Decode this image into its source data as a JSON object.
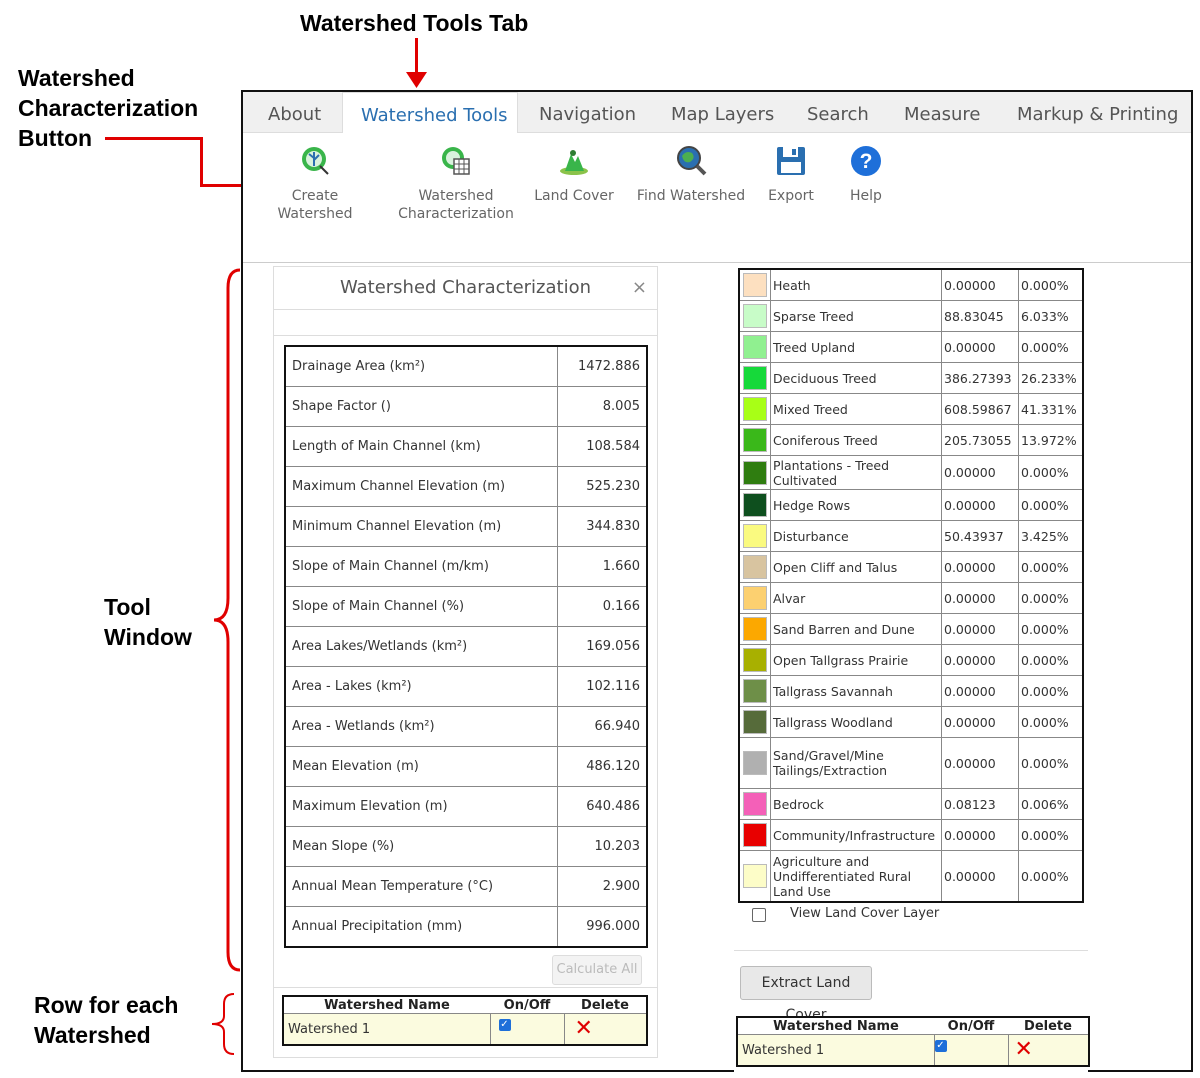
{
  "annotations": {
    "tools_tab": "Watershed Tools Tab",
    "char_button": [
      "Watershed",
      "Characterization",
      "Button"
    ],
    "tool_window": [
      "Tool",
      "Window"
    ],
    "row_each": [
      "Row for each",
      "Watershed"
    ]
  },
  "tabs": [
    "About",
    "Watershed Tools",
    "Navigation",
    "Map Layers",
    "Search",
    "Measure",
    "Markup & Printing"
  ],
  "toolbar": [
    {
      "label1": "Create",
      "label2": "Watershed",
      "icon": "create-watershed-icon"
    },
    {
      "label1": "Watershed",
      "label2": "Characterization",
      "icon": "watershed-characterization-icon"
    },
    {
      "label1": "Land Cover",
      "label2": "",
      "icon": "land-cover-icon"
    },
    {
      "label1": "Find Watershed",
      "label2": "",
      "icon": "find-watershed-icon"
    },
    {
      "label1": "Export",
      "label2": "",
      "icon": "save-icon"
    },
    {
      "label1": "Help",
      "label2": "",
      "icon": "help-icon"
    }
  ],
  "characterization": {
    "title": "Watershed Characterization",
    "close": "×",
    "rows": [
      {
        "label": "Drainage Area (km²)",
        "value": "1472.886"
      },
      {
        "label": "Shape Factor ()",
        "value": "8.005"
      },
      {
        "label": "Length of Main Channel (km)",
        "value": "108.584"
      },
      {
        "label": "Maximum Channel Elevation (m)",
        "value": "525.230"
      },
      {
        "label": "Minimum Channel Elevation (m)",
        "value": "344.830"
      },
      {
        "label": "Slope of Main Channel (m/km)",
        "value": "1.660"
      },
      {
        "label": "Slope of Main Channel (%)",
        "value": "0.166"
      },
      {
        "label": "Area Lakes/Wetlands (km²)",
        "value": "169.056"
      },
      {
        "label": "Area - Lakes (km²)",
        "value": "102.116"
      },
      {
        "label": "Area - Wetlands (km²)",
        "value": "66.940"
      },
      {
        "label": "Mean Elevation (m)",
        "value": "486.120"
      },
      {
        "label": "Maximum Elevation (m)",
        "value": "640.486"
      },
      {
        "label": "Mean Slope (%)",
        "value": "10.203"
      },
      {
        "label": "Annual Mean Temperature (°C)",
        "value": "2.900"
      },
      {
        "label": "Annual Precipitation (mm)",
        "value": "996.000"
      }
    ],
    "calc_button": "Calculate All"
  },
  "watershed_table": {
    "headers": [
      "Watershed Name",
      "On/Off",
      "Delete"
    ],
    "row": {
      "name": "Watershed 1",
      "check": "✓",
      "delete": "✕"
    }
  },
  "land_cover": {
    "rows": [
      {
        "color": "#fde0c0",
        "name": "Heath",
        "area": "0.00000",
        "pct": "0.000%"
      },
      {
        "color": "#c8fcc8",
        "name": "Sparse Treed",
        "area": "88.83045",
        "pct": "6.033%"
      },
      {
        "color": "#90f090",
        "name": "Treed Upland",
        "area": "0.00000",
        "pct": "0.000%"
      },
      {
        "color": "#16d93a",
        "name": "Deciduous Treed",
        "area": "386.27393",
        "pct": "26.233%"
      },
      {
        "color": "#a8ff16",
        "name": "Mixed Treed",
        "area": "608.59867",
        "pct": "41.331%"
      },
      {
        "color": "#3ab81a",
        "name": "Coniferous Treed",
        "area": "205.73055",
        "pct": "13.972%"
      },
      {
        "color": "#2f7d10",
        "name": "Plantations - Treed Cultivated",
        "area": "0.00000",
        "pct": "0.000%"
      },
      {
        "color": "#0e4f1e",
        "name": "Hedge Rows",
        "area": "0.00000",
        "pct": "0.000%"
      },
      {
        "color": "#fafa80",
        "name": "Disturbance",
        "area": "50.43937",
        "pct": "3.425%"
      },
      {
        "color": "#d8c4a0",
        "name": "Open Cliff and Talus",
        "area": "0.00000",
        "pct": "0.000%"
      },
      {
        "color": "#fcd070",
        "name": "Alvar",
        "area": "0.00000",
        "pct": "0.000%"
      },
      {
        "color": "#fca800",
        "name": "Sand Barren and Dune",
        "area": "0.00000",
        "pct": "0.000%"
      },
      {
        "color": "#a8b000",
        "name": "Open Tallgrass Prairie",
        "area": "0.00000",
        "pct": "0.000%"
      },
      {
        "color": "#6e8f48",
        "name": "Tallgrass Savannah",
        "area": "0.00000",
        "pct": "0.000%"
      },
      {
        "color": "#566b3a",
        "name": "Tallgrass Woodland",
        "area": "0.00000",
        "pct": "0.000%"
      },
      {
        "color": "#b0b0b0",
        "name": "Sand/Gravel/Mine Tailings/Extraction",
        "area": "0.00000",
        "pct": "0.000%"
      },
      {
        "color": "#f460b8",
        "name": "Bedrock",
        "area": "0.08123",
        "pct": "0.006%"
      },
      {
        "color": "#e80000",
        "name": "Community/Infrastructure",
        "area": "0.00000",
        "pct": "0.000%"
      },
      {
        "color": "#fdfdc8",
        "name": "Agriculture and Undifferentiated Rural Land Use",
        "area": "0.00000",
        "pct": "0.000%"
      }
    ],
    "view_layer": "View Land Cover Layer",
    "extract_button": "Extract Land Cover"
  }
}
